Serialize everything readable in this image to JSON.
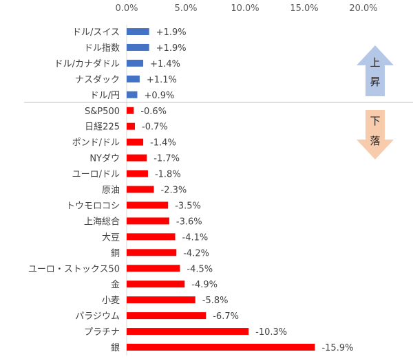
{
  "chart_data": {
    "type": "bar",
    "orientation": "horizontal",
    "xlim": [
      0,
      20
    ],
    "x_ticks": [
      "0.0%",
      "5.0%",
      "10.0%",
      "15.0%",
      "20.0%"
    ],
    "x_axis_position": "top",
    "grid": false,
    "bar_length_encoding": "absolute value",
    "categories": [
      "ドル/スイス",
      "ドル指数",
      "ドル/カナダドル",
      "ナスダック",
      "ドル/円",
      "S&P500",
      "日経225",
      "ポンド/ドル",
      "NYダウ",
      "ユーロ/ドル",
      "原油",
      "トウモロコシ",
      "上海総合",
      "大豆",
      "銅",
      "ユーロ・ストックス50",
      "金",
      "小麦",
      "パラジウム",
      "プラチナ",
      "銀"
    ],
    "values": [
      1.9,
      1.9,
      1.4,
      1.1,
      0.9,
      -0.6,
      -0.7,
      -1.4,
      -1.7,
      -1.8,
      -2.3,
      -3.5,
      -3.6,
      -4.1,
      -4.2,
      -4.5,
      -4.9,
      -5.8,
      -6.7,
      -10.3,
      -15.9
    ],
    "data_labels": [
      "+1.9%",
      "+1.9%",
      "+1.4%",
      "+1.1%",
      "+0.9%",
      "-0.6%",
      "-0.7%",
      "-1.4%",
      "-1.7%",
      "-1.8%",
      "-2.3%",
      "-3.5%",
      "-3.6%",
      "-4.1%",
      "-4.2%",
      "-4.5%",
      "-4.9%",
      "-5.8%",
      "-6.7%",
      "-10.3%",
      "-15.9%"
    ],
    "colors": {
      "positive": "#4472C4",
      "negative": "#FF0000"
    },
    "annotations": {
      "up": {
        "text": [
          "上",
          "昇"
        ],
        "color": "#B4C7E7"
      },
      "down": {
        "text": [
          "下",
          "落"
        ],
        "color": "#F8CBAD"
      }
    }
  }
}
